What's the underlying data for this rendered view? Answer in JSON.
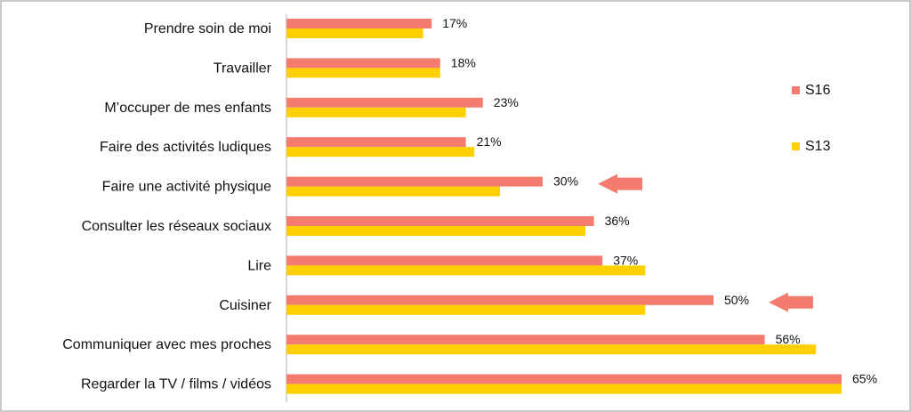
{
  "chart_data": {
    "type": "bar",
    "orientation": "horizontal",
    "categories": [
      "Prendre soin de moi",
      "Travailler",
      "M’occuper de mes enfants",
      "Faire des activités ludiques",
      "Faire une activité physique",
      "Consulter les réseaux sociaux",
      "Lire",
      "Cuisiner",
      "Communiquer avec mes proches",
      "Regarder la TV / films / vidéos"
    ],
    "series": [
      {
        "name": "S16",
        "color": "#f47c6e",
        "values": [
          17,
          18,
          23,
          21,
          30,
          36,
          37,
          50,
          56,
          65
        ],
        "labels": [
          "17%",
          "18%",
          "23%",
          "21%",
          "30%",
          "36%",
          "37%",
          "50%",
          "56%",
          "65%"
        ]
      },
      {
        "name": "S13",
        "color": "#ffd000",
        "values": [
          16,
          18,
          21,
          22,
          25,
          35,
          42,
          42,
          62,
          65
        ]
      }
    ],
    "highlight_arrows": [
      "Faire une activité physique",
      "Cuisiner"
    ],
    "xlim": [
      0,
      70
    ],
    "grid": false,
    "legend_position": "right",
    "title": "",
    "xlabel": "",
    "ylabel": ""
  },
  "colors": {
    "arrow": "#f47c6e",
    "axis": "#b0b0b0"
  }
}
